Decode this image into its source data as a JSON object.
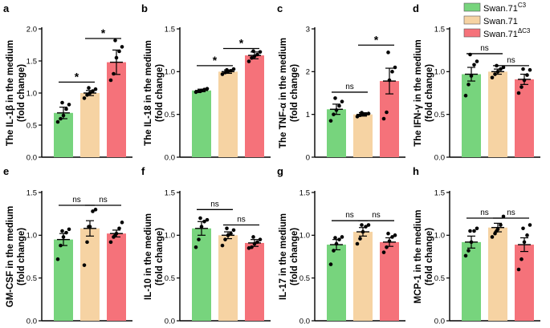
{
  "legend": [
    {
      "name": "Swan.71",
      "sup": "C3",
      "color": "#77d47d"
    },
    {
      "name": "Swan.71",
      "sup": "",
      "color": "#f6d3a3"
    },
    {
      "name": "Swan.71",
      "sup": "ΔC3",
      "color": "#f5727a"
    }
  ],
  "chart_data": [
    {
      "type": "bar",
      "panel": "a",
      "ylabel": [
        "The IL-1β in the medium",
        "(fold change)"
      ],
      "ylim": [
        0,
        2.0
      ],
      "ticks": [
        0.0,
        0.5,
        1.0,
        1.5,
        2.0
      ],
      "tick_labels": [
        "0.0",
        "0.5",
        "1.0",
        "1.5",
        "2.0"
      ],
      "categories": [
        "Swan.71C3",
        "Swan.71",
        "Swan.71ΔC3"
      ],
      "values": [
        0.69,
        1.0,
        1.48
      ],
      "errors": [
        0.09,
        0.04,
        0.19
      ],
      "points": [
        [
          0.55,
          0.6,
          0.65,
          0.75,
          0.82,
          0.85
        ],
        [
          0.92,
          0.97,
          1.0,
          1.03,
          1.06,
          1.08
        ],
        [
          1.2,
          1.3,
          1.55,
          1.65,
          1.72,
          1.82
        ]
      ],
      "significance": [
        {
          "from": 0,
          "to": 1,
          "level": 1.17,
          "label": "*"
        },
        {
          "from": 1,
          "to": 2,
          "level": 1.85,
          "label": "*"
        }
      ]
    },
    {
      "type": "bar",
      "panel": "b",
      "ylabel": [
        "The IL-18 in the medium",
        "(fold change)"
      ],
      "ylim": [
        0,
        1.5
      ],
      "ticks": [
        0.0,
        0.5,
        1.0,
        1.5
      ],
      "tick_labels": [
        "0.0",
        "0.5",
        "1.0",
        "1.5"
      ],
      "categories": [
        "Swan.71C3",
        "Swan.71",
        "Swan.71ΔC3"
      ],
      "values": [
        0.78,
        1.0,
        1.19
      ],
      "errors": [
        0.015,
        0.02,
        0.04
      ],
      "points": [
        [
          0.76,
          0.77,
          0.78,
          0.79,
          0.8,
          0.77
        ],
        [
          0.97,
          0.99,
          1.0,
          1.01,
          1.03,
          1.02
        ],
        [
          1.12,
          1.16,
          1.18,
          1.2,
          1.23,
          1.24
        ]
      ],
      "significance": [
        {
          "from": 0,
          "to": 1,
          "level": 1.07,
          "label": "*"
        },
        {
          "from": 1,
          "to": 2,
          "level": 1.27,
          "label": "*"
        }
      ]
    },
    {
      "type": "bar",
      "panel": "c",
      "ylabel": [
        "The TNF-α in the medium",
        "(fold change)"
      ],
      "ylim": [
        0,
        3
      ],
      "ticks": [
        0,
        1,
        2,
        3
      ],
      "tick_labels": [
        "0",
        "1",
        "2",
        "3"
      ],
      "categories": [
        "Swan.71C3",
        "Swan.71",
        "Swan.71ΔC3"
      ],
      "values": [
        1.12,
        1.0,
        1.78
      ],
      "errors": [
        0.12,
        0.04,
        0.3
      ],
      "points": [
        [
          0.85,
          1.0,
          1.1,
          1.2,
          1.3,
          1.38
        ],
        [
          0.95,
          0.98,
          1.0,
          1.0,
          1.02,
          1.04
        ],
        [
          0.9,
          1.05,
          1.8,
          2.0,
          2.1,
          2.45
        ]
      ],
      "significance": [
        {
          "from": 0,
          "to": 1,
          "level": 1.52,
          "label": "ns"
        },
        {
          "from": 1,
          "to": 2,
          "level": 2.62,
          "label": "*"
        }
      ]
    },
    {
      "type": "bar",
      "panel": "d",
      "ylabel": [
        "The IFN-γ in the medium",
        "(fold change)"
      ],
      "ylim": [
        0,
        1.5
      ],
      "ticks": [
        0.0,
        0.5,
        1.0,
        1.5
      ],
      "tick_labels": [
        "0.0",
        "0.5",
        "1.0",
        "1.5"
      ],
      "categories": [
        "Swan.71C3",
        "Swan.71",
        "Swan.71ΔC3"
      ],
      "values": [
        0.97,
        1.0,
        0.91
      ],
      "errors": [
        0.08,
        0.03,
        0.06
      ],
      "points": [
        [
          0.72,
          0.85,
          0.95,
          1.08,
          1.12,
          1.2
        ],
        [
          0.93,
          0.97,
          1.0,
          1.03,
          1.05,
          1.07
        ],
        [
          0.75,
          0.82,
          0.9,
          0.96,
          1.02,
          1.03
        ]
      ],
      "significance": [
        {
          "from": 0,
          "to": 1,
          "level": 1.21,
          "label": "ns"
        },
        {
          "from": 1,
          "to": 2,
          "level": 1.07,
          "label": "ns"
        }
      ]
    },
    {
      "type": "bar",
      "panel": "e",
      "ylabel": [
        "GM-CSF in the medium",
        "(fold change)"
      ],
      "ylim": [
        0,
        1.5
      ],
      "ticks": [
        0.0,
        0.5,
        1.0,
        1.5
      ],
      "tick_labels": [
        "0.0",
        "0.5",
        "1.0",
        "1.5"
      ],
      "categories": [
        "Swan.71C3",
        "Swan.71",
        "Swan.71ΔC3"
      ],
      "values": [
        0.95,
        1.08,
        1.02
      ],
      "errors": [
        0.07,
        0.09,
        0.04
      ],
      "points": [
        [
          0.72,
          0.88,
          0.98,
          1.03,
          1.07,
          1.05
        ],
        [
          0.65,
          0.92,
          1.1,
          1.28,
          1.3,
          1.1
        ],
        [
          0.92,
          0.98,
          1.02,
          1.08,
          1.15,
          1.0
        ]
      ],
      "significance": [
        {
          "from": 0,
          "to": 1,
          "level": 1.35,
          "label": "ns"
        },
        {
          "from": 1,
          "to": 2,
          "level": 1.35,
          "label": "ns"
        }
      ]
    },
    {
      "type": "bar",
      "panel": "f",
      "ylabel": [
        "IL-10 in the medium",
        "(fold change)"
      ],
      "ylim": [
        0,
        1.5
      ],
      "ticks": [
        0.0,
        0.5,
        1.0,
        1.5
      ],
      "tick_labels": [
        "0.0",
        "0.5",
        "1.0",
        "1.5"
      ],
      "categories": [
        "Swan.71C3",
        "Swan.71",
        "Swan.71ΔC3"
      ],
      "values": [
        1.08,
        1.0,
        0.91
      ],
      "errors": [
        0.08,
        0.04,
        0.04
      ],
      "points": [
        [
          0.86,
          0.95,
          1.1,
          1.16,
          1.18,
          1.2
        ],
        [
          0.88,
          0.95,
          1.0,
          1.02,
          1.06,
          1.08
        ],
        [
          0.85,
          0.86,
          0.9,
          0.92,
          0.95,
          0.98
        ]
      ],
      "significance": [
        {
          "from": 0,
          "to": 1,
          "level": 1.3,
          "label": "ns"
        },
        {
          "from": 1,
          "to": 2,
          "level": 1.12,
          "label": "ns"
        }
      ]
    },
    {
      "type": "bar",
      "panel": "g",
      "ylabel": [
        "IL-17 in the medium",
        "(fold change)"
      ],
      "ylim": [
        0,
        1.5
      ],
      "ticks": [
        0.0,
        0.5,
        1.0,
        1.5
      ],
      "tick_labels": [
        "0.0",
        "0.5",
        "1.0",
        "1.5"
      ],
      "categories": [
        "Swan.71C3",
        "Swan.71",
        "Swan.71ΔC3"
      ],
      "values": [
        0.89,
        1.04,
        0.92
      ],
      "errors": [
        0.06,
        0.05,
        0.05
      ],
      "points": [
        [
          0.66,
          0.82,
          0.9,
          0.95,
          0.98,
          0.97
        ],
        [
          0.9,
          0.96,
          1.04,
          1.1,
          1.12,
          1.12
        ],
        [
          0.8,
          0.86,
          0.93,
          0.98,
          1.0,
          1.02
        ]
      ],
      "significance": [
        {
          "from": 0,
          "to": 1,
          "level": 1.17,
          "label": "ns"
        },
        {
          "from": 1,
          "to": 2,
          "level": 1.17,
          "label": "ns"
        }
      ]
    },
    {
      "type": "bar",
      "panel": "h",
      "ylabel": [
        "MCP-1 in the medium",
        "(fold change)"
      ],
      "ylim": [
        0,
        1.5
      ],
      "ticks": [
        0.0,
        0.5,
        1.0,
        1.5
      ],
      "tick_labels": [
        "0.0",
        "0.5",
        "1.0",
        "1.5"
      ],
      "categories": [
        "Swan.71C3",
        "Swan.71",
        "Swan.71ΔC3"
      ],
      "values": [
        0.92,
        1.09,
        0.89
      ],
      "errors": [
        0.07,
        0.05,
        0.08
      ],
      "points": [
        [
          0.76,
          0.82,
          0.92,
          1.05,
          1.08,
          1.05
        ],
        [
          0.98,
          1.02,
          1.07,
          1.12,
          1.22,
          1.05
        ],
        [
          0.6,
          0.72,
          0.92,
          1.0,
          1.12,
          1.08
        ]
      ],
      "significance": [
        {
          "from": 0,
          "to": 1,
          "level": 1.2,
          "label": "ns"
        },
        {
          "from": 1,
          "to": 2,
          "level": 1.2,
          "label": "ns"
        }
      ]
    }
  ]
}
